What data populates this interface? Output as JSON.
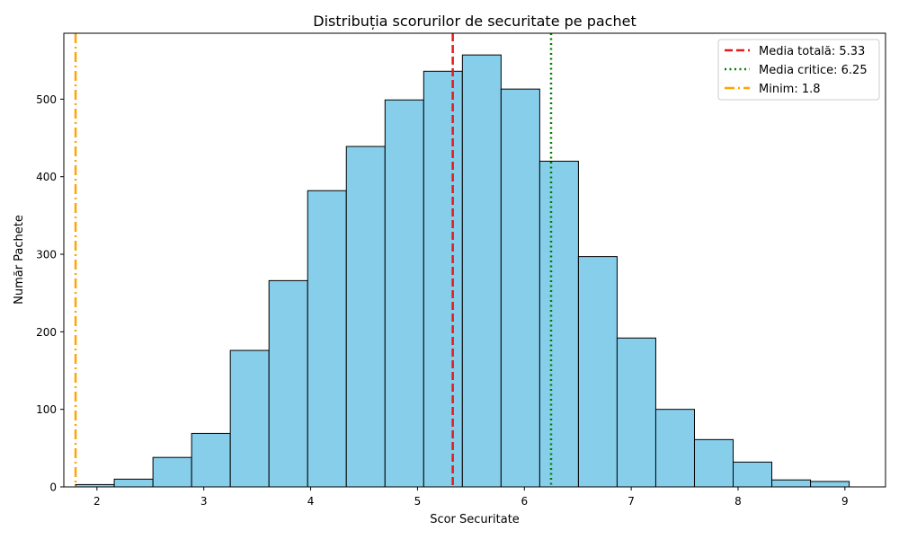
{
  "chart_data": {
    "type": "bar",
    "title": "Distribuția scorurilor de securitate pe pachet",
    "xlabel": "Scor Securitate",
    "ylabel": "Număr Pachete",
    "xlim": [
      1.69,
      9.38
    ],
    "ylim": [
      0,
      585
    ],
    "xticks": [
      "2",
      "3",
      "4",
      "5",
      "6",
      "7",
      "8",
      "9"
    ],
    "yticks": [
      "0",
      "100",
      "200",
      "300",
      "400",
      "500"
    ],
    "grid": false,
    "legend_position": "top-right",
    "bar_color": "#87ceeb",
    "bar_edge_color": "#000000",
    "bin_edges": [
      1.8,
      2.162,
      2.524,
      2.886,
      3.248,
      3.61,
      3.972,
      4.334,
      4.696,
      5.058,
      5.42,
      5.782,
      6.144,
      6.506,
      6.868,
      7.23,
      7.592,
      7.954,
      8.316,
      8.678,
      9.04
    ],
    "values": [
      3,
      10,
      38,
      69,
      176,
      266,
      382,
      439,
      499,
      536,
      557,
      513,
      420,
      297,
      192,
      100,
      61,
      32,
      9,
      7
    ],
    "reference_lines": [
      {
        "label": "Media totală: 5.33",
        "value": 5.33,
        "color": "#e41a1c",
        "style": "dashed"
      },
      {
        "label": "Media critice: 6.25",
        "value": 6.25,
        "color": "#008000",
        "style": "dotted"
      },
      {
        "label": "Minim: 1.8",
        "value": 1.8,
        "color": "#ffa500",
        "style": "dashdot"
      }
    ]
  }
}
